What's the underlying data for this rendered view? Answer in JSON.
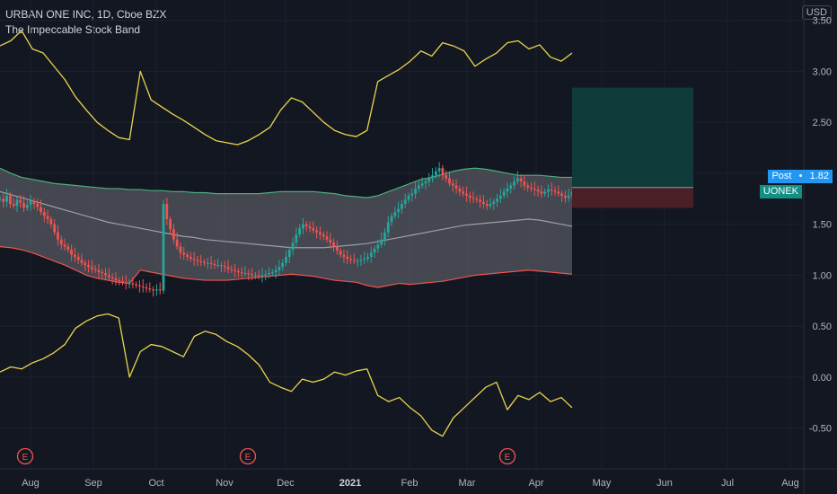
{
  "header": {
    "symbol_line": "URBAN ONE INC, 1D, Cboe BZX",
    "indicator_name": "The Impeccable Stock Band"
  },
  "currency": "USD",
  "price_badges": {
    "post_label": "Post",
    "post_value": "1.82",
    "symbol_tag": "UONEK"
  },
  "colors": {
    "background": "#131722",
    "grid": "#1e222d",
    "up": "#26a69a",
    "down": "#ef5350",
    "outer_band": "#e8d64c",
    "upper_band": "#4caf7d",
    "lower_band": "#ef5350",
    "band_fill": "#555760",
    "mid_line": "#9ea0a6",
    "target_zone": "#0f3b3b",
    "stop_zone": "#4a1f25",
    "post_badge": "#2196f3",
    "symbol_badge": "#138f84",
    "earnings": "#ef5350"
  },
  "chart_data": {
    "type": "line",
    "x_axis_ticks": [
      "Aug",
      "Sep",
      "Oct",
      "Nov",
      "Dec",
      "2021",
      "Feb",
      "Mar",
      "Apr",
      "May",
      "Jun",
      "Jul",
      "Aug"
    ],
    "y_ticks": [
      "3.50",
      "3.00",
      "2.50",
      "2.00",
      "1.50",
      "1.00",
      "0.50",
      "0.00",
      "-0.50"
    ],
    "ylim": [
      -0.9,
      3.7
    ],
    "earnings_marker": "E",
    "earnings_dates": [
      "2020-08-01",
      "2020-11-06",
      "2021-03-22"
    ],
    "price_series_closes": [
      1.75,
      1.72,
      1.78,
      1.7,
      1.68,
      1.74,
      1.71,
      1.66,
      1.69,
      1.73,
      1.7,
      1.67,
      1.62,
      1.58,
      1.55,
      1.5,
      1.42,
      1.35,
      1.3,
      1.28,
      1.25,
      1.2,
      1.18,
      1.15,
      1.12,
      1.1,
      1.08,
      1.06,
      1.05,
      1.03,
      1.02,
      1.0,
      0.98,
      0.97,
      0.95,
      0.94,
      0.93,
      0.92,
      0.92,
      0.91,
      0.9,
      0.89,
      0.88,
      0.87,
      0.86,
      0.85,
      0.86,
      0.85,
      1.7,
      1.55,
      1.45,
      1.35,
      1.28,
      1.22,
      1.2,
      1.18,
      1.16,
      1.15,
      1.14,
      1.13,
      1.12,
      1.12,
      1.11,
      1.1,
      1.1,
      1.09,
      1.08,
      1.06,
      1.05,
      1.04,
      1.03,
      1.02,
      1.02,
      1.01,
      1.0,
      1.0,
      0.99,
      1.0,
      1.01,
      1.02,
      1.03,
      1.05,
      1.08,
      1.12,
      1.18,
      1.25,
      1.32,
      1.4,
      1.46,
      1.5,
      1.48,
      1.46,
      1.44,
      1.42,
      1.4,
      1.38,
      1.35,
      1.32,
      1.28,
      1.24,
      1.2,
      1.18,
      1.16,
      1.15,
      1.14,
      1.14,
      1.15,
      1.16,
      1.18,
      1.22,
      1.26,
      1.3,
      1.35,
      1.42,
      1.52,
      1.58,
      1.62,
      1.65,
      1.7,
      1.74,
      1.78,
      1.8,
      1.85,
      1.88,
      1.9,
      1.92,
      1.95,
      1.98,
      2.02,
      2.05,
      1.98,
      1.95,
      1.9,
      1.88,
      1.85,
      1.82,
      1.8,
      1.78,
      1.76,
      1.75,
      1.74,
      1.72,
      1.7,
      1.68,
      1.7,
      1.72,
      1.75,
      1.78,
      1.82,
      1.85,
      1.88,
      1.92,
      1.95,
      1.92,
      1.88,
      1.86,
      1.85,
      1.84,
      1.82,
      1.8,
      1.82,
      1.84,
      1.83,
      1.82,
      1.8,
      1.78,
      1.76,
      1.78,
      1.82
    ],
    "series": [
      {
        "name": "Upper outer band",
        "values": [
          3.25,
          3.3,
          3.4,
          3.22,
          3.18,
          3.05,
          2.92,
          2.75,
          2.62,
          2.5,
          2.42,
          2.35,
          2.33,
          3.0,
          2.72,
          2.65,
          2.58,
          2.52,
          2.45,
          2.38,
          2.32,
          2.3,
          2.28,
          2.32,
          2.38,
          2.45,
          2.62,
          2.74,
          2.7,
          2.6,
          2.5,
          2.42,
          2.38,
          2.36,
          2.42,
          2.9,
          2.96,
          3.02,
          3.1,
          3.2,
          3.15,
          3.28,
          3.25,
          3.2,
          3.05,
          3.12,
          3.18,
          3.28,
          3.3,
          3.22,
          3.26,
          3.14,
          3.1,
          3.18
        ]
      },
      {
        "name": "Upper band",
        "values": [
          2.05,
          2.0,
          1.96,
          1.94,
          1.92,
          1.9,
          1.89,
          1.88,
          1.87,
          1.86,
          1.85,
          1.85,
          1.84,
          1.84,
          1.83,
          1.83,
          1.82,
          1.82,
          1.81,
          1.81,
          1.8,
          1.8,
          1.8,
          1.8,
          1.8,
          1.81,
          1.82,
          1.82,
          1.82,
          1.82,
          1.81,
          1.8,
          1.78,
          1.77,
          1.76,
          1.78,
          1.82,
          1.86,
          1.9,
          1.94,
          1.96,
          1.99,
          2.02,
          2.04,
          2.05,
          2.04,
          2.02,
          2.0,
          1.98,
          1.98,
          1.98,
          1.97,
          1.96,
          1.96
        ]
      },
      {
        "name": "Mid line",
        "values": [
          1.82,
          1.79,
          1.76,
          1.73,
          1.7,
          1.67,
          1.64,
          1.61,
          1.58,
          1.55,
          1.52,
          1.5,
          1.48,
          1.46,
          1.44,
          1.42,
          1.4,
          1.38,
          1.37,
          1.35,
          1.34,
          1.33,
          1.32,
          1.31,
          1.3,
          1.29,
          1.28,
          1.27,
          1.27,
          1.27,
          1.27,
          1.28,
          1.29,
          1.3,
          1.31,
          1.33,
          1.35,
          1.37,
          1.39,
          1.41,
          1.43,
          1.45,
          1.47,
          1.49,
          1.5,
          1.51,
          1.52,
          1.53,
          1.54,
          1.55,
          1.54,
          1.52,
          1.5,
          1.48
        ]
      },
      {
        "name": "Lower band",
        "values": [
          1.28,
          1.27,
          1.25,
          1.22,
          1.18,
          1.14,
          1.1,
          1.05,
          1.0,
          0.97,
          0.95,
          0.93,
          0.92,
          1.05,
          1.03,
          1.01,
          0.99,
          0.97,
          0.96,
          0.95,
          0.95,
          0.95,
          0.96,
          0.97,
          0.98,
          0.99,
          1.0,
          1.01,
          1.0,
          0.99,
          0.97,
          0.95,
          0.94,
          0.93,
          0.9,
          0.88,
          0.9,
          0.92,
          0.91,
          0.92,
          0.93,
          0.94,
          0.96,
          0.98,
          1.0,
          1.01,
          1.02,
          1.03,
          1.04,
          1.05,
          1.04,
          1.03,
          1.02,
          1.01
        ]
      },
      {
        "name": "Lower outer band",
        "values": [
          0.05,
          0.1,
          0.08,
          0.14,
          0.18,
          0.24,
          0.32,
          0.48,
          0.55,
          0.6,
          0.62,
          0.58,
          0.0,
          0.25,
          0.32,
          0.3,
          0.25,
          0.2,
          0.4,
          0.45,
          0.42,
          0.35,
          0.3,
          0.22,
          0.12,
          -0.05,
          -0.1,
          -0.14,
          -0.02,
          -0.05,
          -0.02,
          0.05,
          0.02,
          0.06,
          0.08,
          -0.18,
          -0.24,
          -0.2,
          -0.3,
          -0.38,
          -0.52,
          -0.58,
          -0.4,
          -0.3,
          -0.2,
          -0.1,
          -0.05,
          -0.32,
          -0.18,
          -0.22,
          -0.15,
          -0.24,
          -0.2,
          -0.3
        ]
      }
    ],
    "position_tool": {
      "entry": 1.86,
      "target": 2.84,
      "stop": 1.66
    }
  }
}
